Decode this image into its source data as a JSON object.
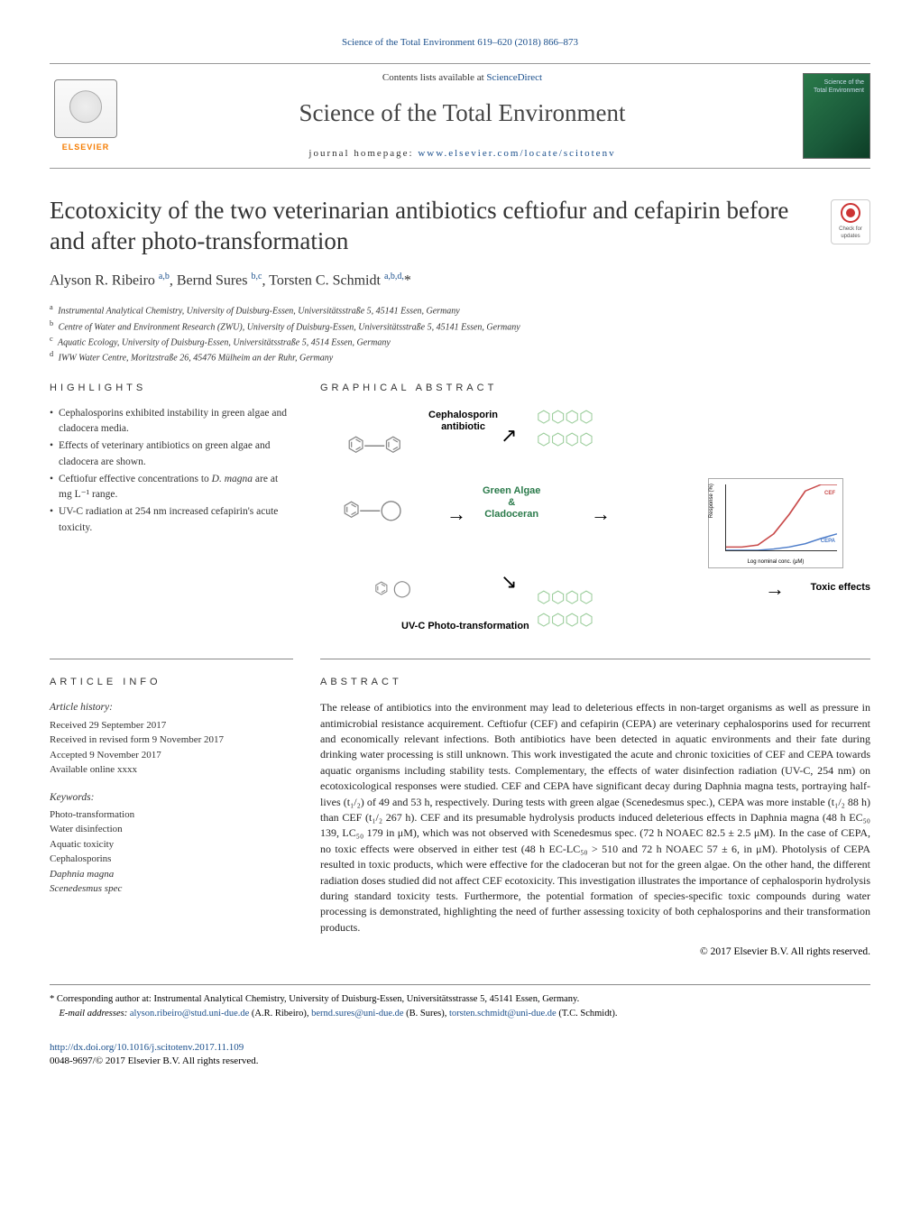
{
  "citation": "Science of the Total Environment 619–620 (2018) 866–873",
  "contents_prefix": "Contents lists available at ",
  "contents_link": "ScienceDirect",
  "journal_name": "Science of the Total Environment",
  "homepage_prefix": "journal homepage: ",
  "homepage_url": "www.elsevier.com/locate/scitotenv",
  "publisher_name": "ELSEVIER",
  "cover_text": "Science of the\nTotal Environment",
  "check_label": "Check for\nupdates",
  "title": "Ecotoxicity of the two veterinarian antibiotics ceftiofur and cefapirin before and after photo-transformation",
  "authors_html": "Alyson R. Ribeiro <sup>a,b</sup>, Bernd Sures <sup>b,c</sup>, Torsten C. Schmidt <sup>a,b,d,</sup>*",
  "affiliations": [
    {
      "sup": "a",
      "text": "Instrumental Analytical Chemistry, University of Duisburg-Essen, Universitätsstraße 5, 45141 Essen, Germany"
    },
    {
      "sup": "b",
      "text": "Centre of Water and Environment Research (ZWU), University of Duisburg-Essen, Universitätsstraße 5, 45141 Essen, Germany"
    },
    {
      "sup": "c",
      "text": "Aquatic Ecology, University of Duisburg-Essen, Universitätsstraße 5, 4514 Essen, Germany"
    },
    {
      "sup": "d",
      "text": "IWW Water Centre, Moritzstraße 26, 45476 Mülheim an der Ruhr, Germany"
    }
  ],
  "highlights_label": "HIGHLIGHTS",
  "highlights": [
    "Cephalosporins exhibited instability in green algae and cladocera media.",
    "Effects of veterinary antibiotics on green algae and cladocera are shown.",
    "Ceftiofur effective concentrations to D. magna are at mg L⁻¹ range.",
    "UV-C radiation at 254 nm increased cefapirin's acute toxicity."
  ],
  "ga_label": "GRAPHICAL ABSTRACT",
  "ga": {
    "labels": {
      "ceph": "Cephalosporin\nantibiotic",
      "algae": "Green Algae\n&\nCladoceran",
      "uvc": "UV-C Photo-transformation",
      "toxic": "Toxic effects"
    },
    "chart": {
      "type": "dose-response",
      "series": [
        {
          "name": "CEF",
          "color": "#c94c4c",
          "points": [
            [
              0.0,
              5
            ],
            [
              0.5,
              5
            ],
            [
              1.0,
              8
            ],
            [
              1.5,
              25
            ],
            [
              2.0,
              55
            ],
            [
              2.5,
              90
            ],
            [
              3.0,
              100
            ],
            [
              3.5,
              100
            ]
          ]
        },
        {
          "name": "CEPA",
          "color": "#4c7cc9",
          "points": [
            [
              0.0,
              0
            ],
            [
              0.5,
              0
            ],
            [
              1.0,
              0
            ],
            [
              1.5,
              2
            ],
            [
              2.0,
              5
            ],
            [
              2.5,
              10
            ],
            [
              3.0,
              18
            ],
            [
              3.5,
              25
            ]
          ]
        }
      ],
      "xlabel": "Log nominal conc. (μM)",
      "ylabel": "Response (%) ",
      "xlim": [
        0,
        3.5
      ],
      "ylim": [
        0,
        100
      ],
      "ytick_step": 20,
      "xtick_step": 0.5,
      "background": "#ffffff",
      "axis_color": "#333333",
      "label_fontsize": 6
    }
  },
  "article_info_label": "ARTICLE INFO",
  "history_heading": "Article history:",
  "history": [
    "Received 29 September 2017",
    "Received in revised form 9 November 2017",
    "Accepted 9 November 2017",
    "Available online xxxx"
  ],
  "keywords_heading": "Keywords:",
  "keywords": [
    "Photo-transformation",
    "Water disinfection",
    "Aquatic toxicity",
    "Cephalosporins",
    "Daphnia magna",
    "Scenedesmus spec"
  ],
  "abstract_label": "ABSTRACT",
  "abstract": "The release of antibiotics into the environment may lead to deleterious effects in non-target organisms as well as pressure in antimicrobial resistance acquirement. Ceftiofur (CEF) and cefapirin (CEPA) are veterinary cephalosporins used for recurrent and economically relevant infections. Both antibiotics have been detected in aquatic environments and their fate during drinking water processing is still unknown. This work investigated the acute and chronic toxicities of CEF and CEPA towards aquatic organisms including stability tests. Complementary, the effects of water disinfection radiation (UV-C, 254 nm) on ecotoxicological responses were studied. CEF and CEPA have significant decay during Daphnia magna tests, portraying half-lives (t₁/₂) of 49 and 53 h, respectively. During tests with green algae (Scenedesmus spec.), CEPA was more instable (t₁/₂ 88 h) than CEF (t₁/₂ 267 h). CEF and its presumable hydrolysis products induced deleterious effects in Daphnia magna (48 h EC₅₀ 139, LC₅₀ 179 in μM), which was not observed with Scenedesmus spec. (72 h NOAEC 82.5 ± 2.5 μM). In the case of CEPA, no toxic effects were observed in either test (48 h EC-LC₅₀ > 510 and 72 h NOAEC 57 ± 6, in μM). Photolysis of CEPA resulted in toxic products, which were effective for the cladoceran but not for the green algae. On the other hand, the different radiation doses studied did not affect CEF ecotoxicity. This investigation illustrates the importance of cephalosporin hydrolysis during standard toxicity tests. Furthermore, the potential formation of species-specific toxic compounds during water processing is demonstrated, highlighting the need of further assessing toxicity of both cephalosporins and their transformation products.",
  "copyright": "© 2017 Elsevier B.V. All rights reserved.",
  "corresponding_marker": "*",
  "corresponding_text": "Corresponding author at: Instrumental Analytical Chemistry, University of Duisburg-Essen, Universitätsstrasse 5, 45141 Essen, Germany.",
  "email_prefix": "E-mail addresses: ",
  "emails": [
    {
      "addr": "alyson.ribeiro@stud.uni-due.de",
      "name": "(A.R. Ribeiro)"
    },
    {
      "addr": "bernd.sures@uni-due.de",
      "name": "(B. Sures)"
    },
    {
      "addr": "torsten.schmidt@uni-due.de",
      "name": "(T.C. Schmidt)"
    }
  ],
  "doi": "http://dx.doi.org/10.1016/j.scitotenv.2017.11.109",
  "issn_line": "0048-9697/© 2017 Elsevier B.V. All rights reserved."
}
